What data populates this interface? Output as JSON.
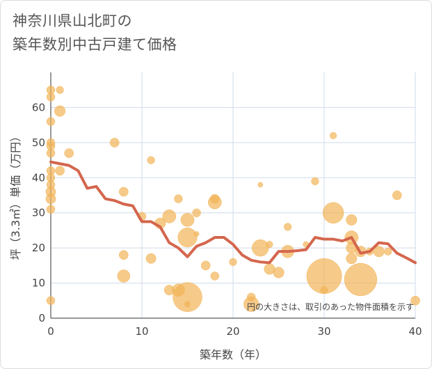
{
  "title_line1": "神奈川県山北町の",
  "title_line2": "築年数別中古戸建て価格",
  "chart_data": {
    "type": "scatter",
    "title": "神奈川県山北町の築年数別中古戸建て価格",
    "xlabel": "築年数（年）",
    "ylabel": "坪（3.3㎡）単価（万円）",
    "xlim": [
      0,
      40
    ],
    "ylim": [
      0,
      70
    ],
    "xticks": [
      0,
      10,
      20,
      30,
      40
    ],
    "yticks": [
      0,
      10,
      20,
      30,
      40,
      50,
      60
    ],
    "grid": true,
    "note": "円の大きさは、取引のあった物件面積を示す",
    "bubble_color": "#f2b457",
    "line_color": "#d4664d",
    "bubbles": [
      {
        "x": 0,
        "y": 65,
        "s": 1
      },
      {
        "x": 0,
        "y": 63,
        "s": 1
      },
      {
        "x": 0,
        "y": 56,
        "s": 1
      },
      {
        "x": 0,
        "y": 50,
        "s": 1
      },
      {
        "x": 0,
        "y": 49,
        "s": 1
      },
      {
        "x": 0,
        "y": 47,
        "s": 1
      },
      {
        "x": 0,
        "y": 42,
        "s": 1
      },
      {
        "x": 0,
        "y": 40,
        "s": 1
      },
      {
        "x": 0,
        "y": 38,
        "s": 1
      },
      {
        "x": 0,
        "y": 36,
        "s": 1.2
      },
      {
        "x": 0,
        "y": 34,
        "s": 1.2
      },
      {
        "x": 0,
        "y": 31,
        "s": 1
      },
      {
        "x": 0,
        "y": 5,
        "s": 1
      },
      {
        "x": 1,
        "y": 65,
        "s": 0.9
      },
      {
        "x": 1,
        "y": 59,
        "s": 1.3
      },
      {
        "x": 1,
        "y": 42,
        "s": 1.1
      },
      {
        "x": 2,
        "y": 47,
        "s": 1.1
      },
      {
        "x": 7,
        "y": 50,
        "s": 1.1
      },
      {
        "x": 8,
        "y": 36,
        "s": 1.1
      },
      {
        "x": 8,
        "y": 18,
        "s": 1.1
      },
      {
        "x": 8,
        "y": 12,
        "s": 1.5
      },
      {
        "x": 10,
        "y": 29,
        "s": 1
      },
      {
        "x": 11,
        "y": 45,
        "s": 0.9
      },
      {
        "x": 11,
        "y": 17,
        "s": 1.2
      },
      {
        "x": 12,
        "y": 27,
        "s": 1.3
      },
      {
        "x": 13,
        "y": 29,
        "s": 1.6
      },
      {
        "x": 13,
        "y": 8,
        "s": 1.2
      },
      {
        "x": 14,
        "y": 34,
        "s": 1
      },
      {
        "x": 14,
        "y": 8,
        "s": 1.5
      },
      {
        "x": 15,
        "y": 28,
        "s": 1.6
      },
      {
        "x": 15,
        "y": 23,
        "s": 2.3
      },
      {
        "x": 15,
        "y": 6,
        "s": 3.5
      },
      {
        "x": 15,
        "y": 4,
        "s": 0.7
      },
      {
        "x": 16,
        "y": 30,
        "s": 1
      },
      {
        "x": 16,
        "y": 24,
        "s": 0.6
      },
      {
        "x": 17,
        "y": 15,
        "s": 1.1
      },
      {
        "x": 18,
        "y": 34,
        "s": 1.1
      },
      {
        "x": 18,
        "y": 33,
        "s": 1.6
      },
      {
        "x": 18,
        "y": 12,
        "s": 1
      },
      {
        "x": 20,
        "y": 16,
        "s": 0.9
      },
      {
        "x": 22,
        "y": 6,
        "s": 1
      },
      {
        "x": 22,
        "y": 4,
        "s": 1.8
      },
      {
        "x": 23,
        "y": 38,
        "s": 0.6
      },
      {
        "x": 23,
        "y": 20,
        "s": 2
      },
      {
        "x": 24,
        "y": 21,
        "s": 0.8
      },
      {
        "x": 24,
        "y": 14,
        "s": 1.3
      },
      {
        "x": 25,
        "y": 13,
        "s": 1.3
      },
      {
        "x": 26,
        "y": 26,
        "s": 0.9
      },
      {
        "x": 26,
        "y": 19,
        "s": 1.5
      },
      {
        "x": 28,
        "y": 21,
        "s": 0.7
      },
      {
        "x": 29,
        "y": 39,
        "s": 0.9
      },
      {
        "x": 30,
        "y": 12,
        "s": 4.2
      },
      {
        "x": 30,
        "y": 8,
        "s": 0.9
      },
      {
        "x": 31,
        "y": 52,
        "s": 0.8
      },
      {
        "x": 31,
        "y": 30,
        "s": 2.5
      },
      {
        "x": 33,
        "y": 28,
        "s": 1.3
      },
      {
        "x": 33,
        "y": 23,
        "s": 1.6
      },
      {
        "x": 33,
        "y": 20,
        "s": 1.3
      },
      {
        "x": 33,
        "y": 17,
        "s": 1.3
      },
      {
        "x": 34,
        "y": 19,
        "s": 1.3
      },
      {
        "x": 34,
        "y": 11,
        "s": 3.9
      },
      {
        "x": 35,
        "y": 19,
        "s": 0.9
      },
      {
        "x": 36,
        "y": 19,
        "s": 1.3
      },
      {
        "x": 37,
        "y": 19,
        "s": 0.9
      },
      {
        "x": 38,
        "y": 35,
        "s": 1.1
      },
      {
        "x": 40,
        "y": 5,
        "s": 1.1
      }
    ],
    "series": [
      {
        "x": [
          0,
          1,
          2,
          3,
          4,
          5,
          6,
          7,
          8,
          9,
          10,
          11,
          12,
          13,
          14,
          15,
          16,
          17,
          18,
          19,
          20,
          21,
          22,
          23,
          24,
          25,
          26,
          27,
          28,
          29,
          30,
          31,
          32,
          33,
          34,
          35,
          36,
          37,
          38,
          39,
          40
        ],
        "values": [
          44.5,
          44,
          43.5,
          42,
          37,
          37.5,
          34,
          33.5,
          32.5,
          32,
          27.5,
          27.5,
          26,
          21.5,
          20,
          17.5,
          20.5,
          21.5,
          23,
          23,
          21,
          18,
          16.5,
          16,
          15.8,
          19,
          19,
          19.2,
          19.5,
          23,
          22.5,
          22.5,
          22,
          23,
          18.5,
          19,
          21.5,
          21.2,
          18.5,
          17.2,
          15.8
        ]
      }
    ]
  }
}
